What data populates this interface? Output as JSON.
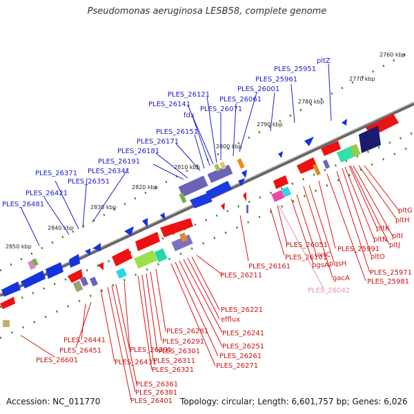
{
  "title": "Pseudomonas aeruginosa LESB58, complete genome",
  "footer": {
    "accession": "Accession: NC_011770",
    "info": "Topology: circular; Length: 6,601,757 bp; Genes: 6,026"
  },
  "ticks": [
    "2760 kbp",
    "2770 kbp",
    "2780 kbp",
    "2790 kbp",
    "2800 kbp",
    "2810 kbp",
    "2820 kbp",
    "2830 kbp",
    "2840 kbp",
    "2850 kbp"
  ],
  "upper_labels": [
    "pltZ",
    "PLES_25951",
    "PLES_25961",
    "PLES_26001",
    "PLES_26061",
    "PLES_26071",
    "PLES_26121",
    "PLES_26141",
    "fdx",
    "PLES_26151",
    "PLES_26171",
    "PLES_26181",
    "PLES_26191",
    "PLES_26341",
    "PLES_26371",
    "PLES_26351",
    "PLES_26421",
    "PLES_26481"
  ],
  "lower_right_labels": [
    "pltG",
    "pltH",
    "pltK",
    "pltI",
    "pltN",
    "pltJ",
    "pltO",
    "PLES_25971",
    "PLES_25981",
    "PLES_25991",
    "pqsH",
    "gacA",
    "uvrC",
    "pgsA",
    "PLES_26051",
    "PLES_26101",
    "PLES_26042"
  ],
  "lower_left_labels": [
    "PLES_26161",
    "PLES_26211",
    "PLES_26221",
    "efflux",
    "PLES_26241",
    "PLES_26251",
    "PLES_26261",
    "PLES_26271",
    "PLES_26281",
    "PLES_26291",
    "PLES_26301",
    "PLES_26311",
    "PLES_26321",
    "PLES_26391",
    "PLES_26361",
    "PLES_26381",
    "PLES_26401",
    "PLES_26431",
    "PLES_26441",
    "PLES_26451",
    "PLES_26601"
  ]
}
